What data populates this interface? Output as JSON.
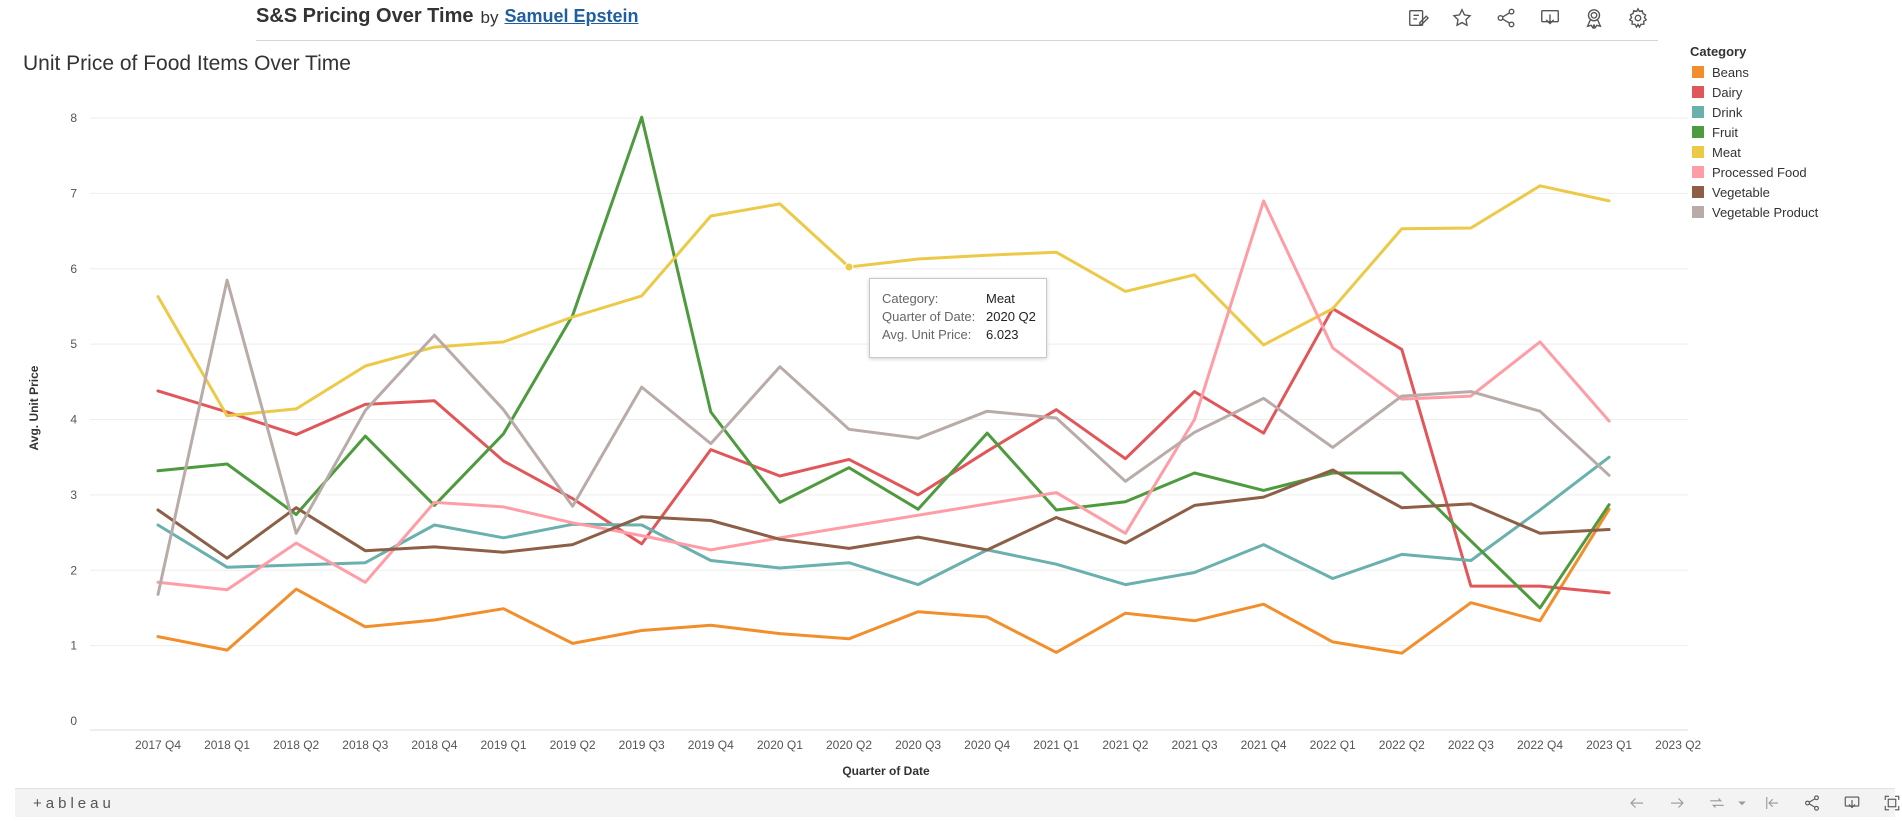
{
  "header": {
    "title": "S&S Pricing Over Time",
    "by": "by",
    "author": "Samuel Epstein"
  },
  "toolbar_icons": [
    "edit-icon",
    "star-icon",
    "share-icon",
    "download-icon",
    "award-icon",
    "gear-icon"
  ],
  "footer": {
    "logo": "+ableau",
    "icons": [
      "undo-icon",
      "redo-icon",
      "revert-icon",
      "reset-icon",
      "share-icon",
      "download-icon",
      "fullscreen-icon"
    ]
  },
  "tooltip": {
    "category_key": "Category:",
    "category_val": "Meat",
    "quarter_key": "Quarter of Date:",
    "quarter_val": "2020 Q2",
    "price_key": "Avg. Unit Price:",
    "price_val": "6.023"
  },
  "chart_data": {
    "type": "line",
    "title": "Unit Price of Food Items Over Time",
    "xlabel": "Quarter of Date",
    "ylabel": "Avg. Unit Price",
    "ylim": [
      0,
      8
    ],
    "yticks": [
      "0",
      "1",
      "2",
      "3",
      "4",
      "5",
      "6",
      "7",
      "8"
    ],
    "categories": [
      "2017 Q4",
      "2018 Q1",
      "2018 Q2",
      "2018 Q3",
      "2018 Q4",
      "2019 Q1",
      "2019 Q2",
      "2019 Q3",
      "2019 Q4",
      "2020 Q1",
      "2020 Q2",
      "2020 Q3",
      "2020 Q4",
      "2021 Q1",
      "2021 Q2",
      "2021 Q3",
      "2021 Q4",
      "2022 Q1",
      "2022 Q2",
      "2022 Q3",
      "2022 Q4",
      "2023 Q1",
      "2023 Q2"
    ],
    "grid": true,
    "legend_title": "Category",
    "legend_position": "right",
    "series": [
      {
        "name": "Beans",
        "color": "#f28e2b",
        "values": [
          1.12,
          0.94,
          1.75,
          1.25,
          1.34,
          1.49,
          1.03,
          1.2,
          1.27,
          1.16,
          1.09,
          1.45,
          1.38,
          0.91,
          1.43,
          1.33,
          1.55,
          1.05,
          0.9,
          1.57,
          1.33,
          2.81,
          null
        ]
      },
      {
        "name": "Dairy",
        "color": "#e15759",
        "values": [
          4.38,
          4.1,
          3.8,
          4.2,
          4.25,
          3.45,
          2.95,
          2.35,
          3.6,
          3.25,
          3.47,
          3.0,
          3.58,
          4.13,
          3.48,
          4.37,
          3.82,
          5.47,
          4.93,
          1.79,
          1.79,
          1.7,
          null
        ]
      },
      {
        "name": "Drink",
        "color": "#6ab0ad",
        "values": [
          2.6,
          2.04,
          2.07,
          2.1,
          2.6,
          2.43,
          2.61,
          2.6,
          2.13,
          2.03,
          2.1,
          1.81,
          2.27,
          2.08,
          1.81,
          1.97,
          2.34,
          1.89,
          2.21,
          2.13,
          2.8,
          3.5,
          null
        ]
      },
      {
        "name": "Fruit",
        "color": "#4e9a3e",
        "values": [
          3.32,
          3.41,
          2.74,
          3.78,
          2.86,
          3.81,
          5.38,
          8.01,
          4.1,
          2.9,
          3.36,
          2.81,
          3.82,
          2.8,
          2.91,
          3.29,
          3.06,
          3.29,
          3.29,
          2.39,
          1.5,
          2.87,
          null
        ]
      },
      {
        "name": "Meat",
        "color": "#edc948",
        "values": [
          5.63,
          4.05,
          4.14,
          4.71,
          4.96,
          5.03,
          5.36,
          5.64,
          6.7,
          6.86,
          6.023,
          6.13,
          6.18,
          6.22,
          5.7,
          5.92,
          4.99,
          5.47,
          6.53,
          6.54,
          7.1,
          6.9,
          null
        ]
      },
      {
        "name": "Processed Food",
        "color": "#ff9da7",
        "values": [
          1.84,
          1.74,
          2.36,
          1.84,
          2.9,
          2.84,
          2.63,
          2.46,
          2.27,
          2.43,
          null,
          null,
          null,
          3.03,
          2.49,
          4.0,
          6.9,
          4.95,
          4.27,
          4.31,
          5.03,
          3.98,
          null
        ]
      },
      {
        "name": "Vegetable",
        "color": "#8c5f46",
        "values": [
          2.8,
          2.16,
          2.83,
          2.26,
          2.31,
          2.24,
          2.34,
          2.71,
          2.66,
          2.41,
          2.29,
          2.44,
          2.27,
          2.7,
          2.36,
          2.86,
          2.97,
          3.33,
          2.83,
          2.88,
          2.49,
          2.54,
          null
        ]
      },
      {
        "name": "Vegetable Product",
        "color": "#b9aca8",
        "values": [
          1.68,
          5.85,
          2.49,
          4.12,
          5.12,
          4.13,
          2.85,
          4.43,
          3.68,
          4.7,
          3.87,
          3.75,
          4.11,
          4.02,
          3.18,
          3.83,
          4.28,
          3.63,
          4.31,
          4.37,
          4.11,
          3.26,
          null
        ]
      }
    ],
    "highlight": {
      "series": "Meat",
      "category": "2020 Q2",
      "value": 6.023
    }
  }
}
